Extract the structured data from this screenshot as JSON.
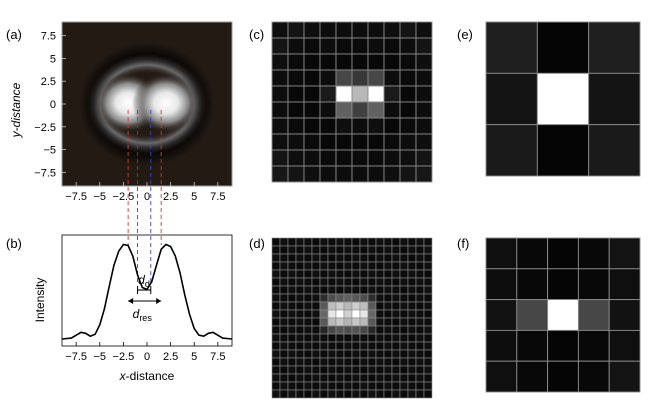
{
  "panels": {
    "a": {
      "label": "(a)",
      "y_axis_label": "y-distance",
      "x_ticks": [
        "−7.5",
        "−5",
        "−2.5",
        "0",
        "2.5",
        "5",
        "7.5"
      ],
      "y_ticks": [
        "7.5",
        "5",
        "2.5",
        "0",
        "−2.5",
        "−5",
        "−7.5"
      ],
      "colors": {
        "background": "#231a14",
        "ring": "#0d0907",
        "core": "#ffffff"
      }
    },
    "b": {
      "label": "(b)",
      "y_axis_label": "Intensity",
      "x_axis_label_italic": "x",
      "x_axis_label_rest": "-distance",
      "x_ticks": [
        "−7.5",
        "−5",
        "−2.5",
        "0",
        "2.5",
        "5",
        "7.5"
      ],
      "annot_dd_main": "d",
      "annot_dd_sub": "d",
      "annot_dres_main": "d",
      "annot_dres_sub": "res"
    },
    "c": {
      "label": "(c)"
    },
    "d": {
      "label": "(d)"
    },
    "e": {
      "label": "(e)"
    },
    "f": {
      "label": "(f)"
    }
  },
  "chart_data": {
    "type": "line",
    "x_range": [
      -9,
      9
    ],
    "y_range": [
      0,
      1.1
    ],
    "peaks_x": [
      -2,
      2
    ],
    "dip_x": 0,
    "guide_lines": {
      "red_x": [
        -2,
        1.5
      ],
      "blue_x": [
        -1,
        0.4
      ]
    },
    "series": [
      {
        "x": [
          -9,
          -8,
          -7.5,
          -7,
          -6.5,
          -6,
          -5.5,
          -5,
          -4.5,
          -4,
          -3.5,
          -3,
          -2.5,
          -2,
          -1.5,
          -1,
          -0.5,
          0,
          0.5,
          1,
          1.5,
          2,
          2.5,
          3,
          3.5,
          4,
          4.5,
          5,
          5.5,
          6,
          6.5,
          7,
          7.5,
          8,
          9
        ],
        "y": [
          0.01,
          0.02,
          0.05,
          0.08,
          0.07,
          0.04,
          0.06,
          0.16,
          0.33,
          0.56,
          0.78,
          0.93,
          1.0,
          0.99,
          0.88,
          0.68,
          0.55,
          0.53,
          0.61,
          0.78,
          0.95,
          1.0,
          0.98,
          0.88,
          0.7,
          0.47,
          0.27,
          0.12,
          0.05,
          0.04,
          0.07,
          0.08,
          0.05,
          0.02,
          0.01
        ]
      }
    ]
  },
  "pixel_grids": {
    "c": {
      "n": 10,
      "values": [
        [
          0.06,
          0.08,
          0.06,
          0.05,
          0.05,
          0.05,
          0.05,
          0.06,
          0.08,
          0.06
        ],
        [
          0.08,
          0.05,
          0.04,
          0.05,
          0.04,
          0.04,
          0.05,
          0.04,
          0.05,
          0.08
        ],
        [
          0.06,
          0.04,
          0.03,
          0.03,
          0.03,
          0.03,
          0.03,
          0.03,
          0.04,
          0.06
        ],
        [
          0.05,
          0.04,
          0.03,
          0.05,
          0.28,
          0.22,
          0.28,
          0.05,
          0.04,
          0.05
        ],
        [
          0.05,
          0.03,
          0.03,
          0.1,
          1.0,
          0.72,
          1.0,
          0.1,
          0.03,
          0.05
        ],
        [
          0.05,
          0.03,
          0.03,
          0.05,
          0.38,
          0.25,
          0.38,
          0.05,
          0.03,
          0.05
        ],
        [
          0.05,
          0.04,
          0.03,
          0.03,
          0.06,
          0.05,
          0.06,
          0.03,
          0.04,
          0.05
        ],
        [
          0.06,
          0.05,
          0.04,
          0.03,
          0.03,
          0.03,
          0.03,
          0.04,
          0.05,
          0.06
        ],
        [
          0.08,
          0.06,
          0.05,
          0.04,
          0.04,
          0.04,
          0.04,
          0.05,
          0.06,
          0.08
        ],
        [
          0.09,
          0.08,
          0.06,
          0.05,
          0.05,
          0.05,
          0.05,
          0.06,
          0.08,
          0.09
        ]
      ]
    },
    "d": {
      "n": 20,
      "center_values": [
        [
          0.18,
          0.3,
          0.35,
          0.38,
          0.35,
          0.3,
          0.18
        ],
        [
          0.35,
          0.75,
          0.8,
          0.72,
          0.8,
          0.75,
          0.35
        ],
        [
          0.4,
          0.9,
          1.0,
          0.82,
          1.0,
          0.9,
          0.4
        ],
        [
          0.35,
          0.72,
          0.78,
          0.7,
          0.78,
          0.72,
          0.35
        ],
        [
          0.15,
          0.28,
          0.32,
          0.3,
          0.32,
          0.28,
          0.15
        ]
      ]
    },
    "e": {
      "n": 3,
      "values": [
        [
          0.12,
          0.02,
          0.12
        ],
        [
          0.08,
          1.0,
          0.08
        ],
        [
          0.1,
          0.02,
          0.1
        ]
      ]
    },
    "f": {
      "n": 5,
      "values": [
        [
          0.06,
          0.03,
          0.02,
          0.03,
          0.08
        ],
        [
          0.05,
          0.03,
          0.02,
          0.03,
          0.06
        ],
        [
          0.07,
          0.28,
          1.0,
          0.28,
          0.07
        ],
        [
          0.05,
          0.03,
          0.02,
          0.03,
          0.06
        ],
        [
          0.06,
          0.03,
          0.02,
          0.03,
          0.08
        ]
      ]
    }
  }
}
